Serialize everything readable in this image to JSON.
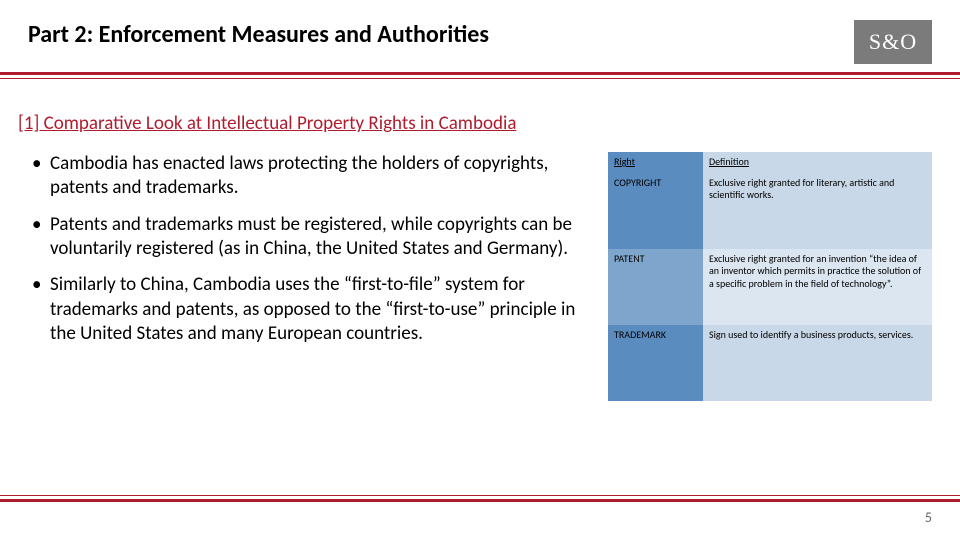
{
  "title": "Part 2: Enforcement Measures and Authorities",
  "logo": {
    "text": "S&O",
    "bg": "#7b7b7b",
    "fg": "#ffffff"
  },
  "accent_color": "#b01c2e",
  "subheading": "[1] Comparative Look at Intellectual Property Rights in Cambodia",
  "bullets": [
    "Cambodia has enacted laws protecting the holders of copyrights, patents and trademarks.",
    "Patents and trademarks must be registered, while copyrights can be voluntarily registered (as in China, the United States and Germany).",
    "Similarly to China, Cambodia uses the “first-to-file” system for trademarks and patents, as opposed to the “first-to-use” principle in the United States and many European countries."
  ],
  "table": {
    "columns": [
      "Right",
      "Definition"
    ],
    "header_bg": [
      "#5b8cbf",
      "#c9d8e8"
    ],
    "col_bg": [
      "#5b8cbf",
      "#c9d8e8"
    ],
    "col_bg_alt": [
      "#7ea6cc",
      "#dbe6f1"
    ],
    "rows": [
      {
        "right": "COPYRIGHT",
        "def": "Exclusive right granted for literary, artistic and scientific works."
      },
      {
        "right": "PATENT",
        "def": "Exclusive right granted for an invention “the idea of an inventor which permits in practice the solution of a specific problem in the field of technology”."
      },
      {
        "right": "TRADEMARK",
        "def": "Sign used to identify a business products, services."
      }
    ]
  },
  "page_number": "5"
}
